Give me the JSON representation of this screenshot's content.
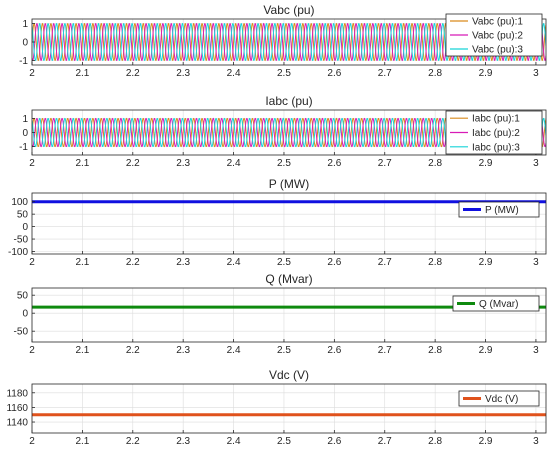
{
  "chart_data": [
    {
      "type": "line",
      "title": "Vabc (pu)",
      "xlim": [
        2,
        3.02
      ],
      "xticks": [
        "2",
        "2.1",
        "2.2",
        "2.3",
        "2.4",
        "2.5",
        "2.6",
        "2.7",
        "2.8",
        "2.9",
        "3"
      ],
      "ylim": [
        -1.25,
        1.25
      ],
      "yticks": [
        "-1",
        "0",
        "1"
      ],
      "grid": true,
      "legend_position": "top-right",
      "waveform": {
        "kind": "three-phase sine",
        "amplitude": 1.0,
        "frequency_hz": 60
      },
      "series": [
        {
          "name": "Vabc (pu):1",
          "color": "#D98A1C",
          "phase_deg": 0
        },
        {
          "name": "Vabc (pu):2",
          "color": "#D81BB6",
          "phase_deg": -120
        },
        {
          "name": "Vabc (pu):3",
          "color": "#17D4D8",
          "phase_deg": 120
        }
      ]
    },
    {
      "type": "line",
      "title": "Iabc (pu)",
      "xlim": [
        2,
        3.02
      ],
      "xticks": [
        "2",
        "2.1",
        "2.2",
        "2.3",
        "2.4",
        "2.5",
        "2.6",
        "2.7",
        "2.8",
        "2.9",
        "3"
      ],
      "ylim": [
        -1.6,
        1.6
      ],
      "yticks": [
        "-1",
        "0",
        "1"
      ],
      "grid": true,
      "legend_position": "top-right",
      "waveform": {
        "kind": "three-phase sine",
        "amplitude": 1.0,
        "frequency_hz": 60
      },
      "series": [
        {
          "name": "Iabc (pu):1",
          "color": "#D98A1C",
          "phase_deg": 0
        },
        {
          "name": "Iabc (pu):2",
          "color": "#D81BB6",
          "phase_deg": -120
        },
        {
          "name": "Iabc (pu):3",
          "color": "#17D4D8",
          "phase_deg": 120
        }
      ]
    },
    {
      "type": "line",
      "title": "P (MW)",
      "xlim": [
        2,
        3.02
      ],
      "xticks": [
        "2",
        "2.1",
        "2.2",
        "2.3",
        "2.4",
        "2.5",
        "2.6",
        "2.7",
        "2.8",
        "2.9",
        "3"
      ],
      "ylim": [
        -110,
        135
      ],
      "yticks": [
        "-100",
        "-50",
        "0",
        "50",
        "100"
      ],
      "grid": true,
      "legend_position": "top-right",
      "series": [
        {
          "name": "P (MW)",
          "color": "#1010E0",
          "constant": 100
        }
      ]
    },
    {
      "type": "line",
      "title": "Q (Mvar)",
      "xlim": [
        2,
        3.02
      ],
      "xticks": [
        "2",
        "2.1",
        "2.2",
        "2.3",
        "2.4",
        "2.5",
        "2.6",
        "2.7",
        "2.8",
        "2.9",
        "3"
      ],
      "ylim": [
        -80,
        70
      ],
      "yticks": [
        "-50",
        "0",
        "50"
      ],
      "grid": true,
      "legend_position": "top-right",
      "series": [
        {
          "name": "Q (Mvar)",
          "color": "#0E8A0E",
          "constant": 17
        }
      ]
    },
    {
      "type": "line",
      "title": "Vdc (V)",
      "xlim": [
        2,
        3.02
      ],
      "xticks": [
        "2",
        "2.1",
        "2.2",
        "2.3",
        "2.4",
        "2.5",
        "2.6",
        "2.7",
        "2.8",
        "2.9",
        "3"
      ],
      "ylim": [
        1125,
        1192
      ],
      "yticks": [
        "1140",
        "1160",
        "1180"
      ],
      "grid": true,
      "legend_position": "top-right",
      "series": [
        {
          "name": "Vdc (V)",
          "color": "#E0521C",
          "constant": 1150
        }
      ]
    }
  ]
}
